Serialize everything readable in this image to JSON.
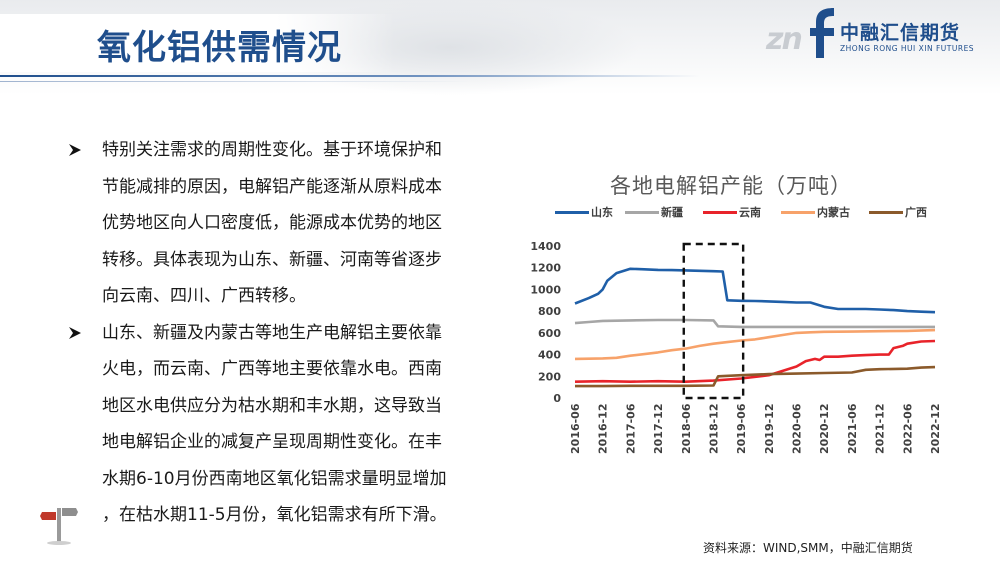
{
  "header": {
    "title": "氧化铝供需情况",
    "logo_cn": "中融汇信期货",
    "logo_en": "ZHONG RONG HUI XIN FUTURES",
    "logo_mark": "zn"
  },
  "bullets": [
    {
      "lines": [
        "特别关注需求的周期性变化。基于环境保护和",
        "节能减排的原因，电解铝产能逐渐从原料成本",
        "优势地区向人口密度低，能源成本优势的地区",
        "转移。具体表现为山东、新疆、河南等省逐步",
        "向云南、四川、广西转移。"
      ]
    },
    {
      "lines": [
        "山东、新疆及内蒙古等地生产电解铝主要依靠",
        "火电，而云南、广西等地主要依靠水电。西南",
        "地区水电供应分为枯水期和丰水期，这导致当",
        "地电解铝企业的减复产呈现周期性变化。在丰",
        "水期6-10月份西南地区氧化铝需求量明显增加",
        "，在枯水期11-5月份，氧化铝需求有所下滑。"
      ]
    }
  ],
  "source": "资料来源：WIND,SMM，中融汇信期货",
  "chart_data": {
    "type": "line",
    "title": "各地电解铝产能（万吨）",
    "ylim": [
      0,
      1400
    ],
    "yticks": [
      0,
      200,
      400,
      600,
      800,
      1000,
      1200,
      1400
    ],
    "xlabels": [
      "2016-06",
      "2016-12",
      "2017-06",
      "2017-12",
      "2018-06",
      "2018-12",
      "2019-06",
      "2019-12",
      "2020-06",
      "2020-12",
      "2021-06",
      "2021-12",
      "2022-06",
      "2022-12"
    ],
    "grid": false,
    "legend_position": "top",
    "highlight_box": {
      "from": "2018-06",
      "to": "2019-06"
    },
    "series": [
      {
        "name": "山东",
        "color": "#1f5fa8",
        "points": [
          [
            "2016-06",
            870
          ],
          [
            "2016-09",
            920
          ],
          [
            "2016-11",
            960
          ],
          [
            "2016-12",
            1000
          ],
          [
            "2017-01",
            1080
          ],
          [
            "2017-03",
            1150
          ],
          [
            "2017-06",
            1190
          ],
          [
            "2017-09",
            1185
          ],
          [
            "2017-12",
            1180
          ],
          [
            "2018-03",
            1178
          ],
          [
            "2018-06",
            1175
          ],
          [
            "2018-09",
            1172
          ],
          [
            "2018-12",
            1168
          ],
          [
            "2019-02",
            1165
          ],
          [
            "2019-03",
            900
          ],
          [
            "2019-06",
            895
          ],
          [
            "2019-09",
            893
          ],
          [
            "2019-12",
            890
          ],
          [
            "2020-03",
            885
          ],
          [
            "2020-06",
            880
          ],
          [
            "2020-09",
            880
          ],
          [
            "2020-12",
            840
          ],
          [
            "2021-03",
            820
          ],
          [
            "2021-06",
            820
          ],
          [
            "2021-09",
            820
          ],
          [
            "2021-12",
            815
          ],
          [
            "2022-03",
            810
          ],
          [
            "2022-06",
            800
          ],
          [
            "2022-09",
            795
          ],
          [
            "2022-12",
            790
          ]
        ]
      },
      {
        "name": "新疆",
        "color": "#a6a6a6",
        "points": [
          [
            "2016-06",
            690
          ],
          [
            "2016-09",
            700
          ],
          [
            "2016-12",
            710
          ],
          [
            "2017-06",
            715
          ],
          [
            "2017-12",
            718
          ],
          [
            "2018-06",
            718
          ],
          [
            "2018-12",
            715
          ],
          [
            "2019-01",
            660
          ],
          [
            "2019-06",
            655
          ],
          [
            "2019-12",
            655
          ],
          [
            "2020-06",
            655
          ],
          [
            "2020-12",
            655
          ],
          [
            "2021-06",
            655
          ],
          [
            "2021-12",
            655
          ],
          [
            "2022-06",
            655
          ],
          [
            "2022-12",
            655
          ]
        ]
      },
      {
        "name": "云南",
        "color": "#e8232a",
        "points": [
          [
            "2016-06",
            150
          ],
          [
            "2016-12",
            155
          ],
          [
            "2017-06",
            150
          ],
          [
            "2017-12",
            155
          ],
          [
            "2018-06",
            150
          ],
          [
            "2018-12",
            160
          ],
          [
            "2019-06",
            180
          ],
          [
            "2019-12",
            210
          ],
          [
            "2020-03",
            250
          ],
          [
            "2020-06",
            290
          ],
          [
            "2020-08",
            340
          ],
          [
            "2020-10",
            360
          ],
          [
            "2020-11",
            350
          ],
          [
            "2020-12",
            380
          ],
          [
            "2021-03",
            380
          ],
          [
            "2021-06",
            390
          ],
          [
            "2021-09",
            395
          ],
          [
            "2021-12",
            400
          ],
          [
            "2022-02",
            400
          ],
          [
            "2022-03",
            460
          ],
          [
            "2022-05",
            480
          ],
          [
            "2022-06",
            500
          ],
          [
            "2022-09",
            520
          ],
          [
            "2022-12",
            525
          ]
        ]
      },
      {
        "name": "内蒙古",
        "color": "#f7a26a",
        "points": [
          [
            "2016-06",
            360
          ],
          [
            "2016-12",
            365
          ],
          [
            "2017-03",
            370
          ],
          [
            "2017-06",
            390
          ],
          [
            "2017-12",
            420
          ],
          [
            "2018-03",
            440
          ],
          [
            "2018-06",
            455
          ],
          [
            "2018-09",
            480
          ],
          [
            "2018-12",
            500
          ],
          [
            "2019-03",
            515
          ],
          [
            "2019-06",
            530
          ],
          [
            "2019-09",
            540
          ],
          [
            "2019-12",
            560
          ],
          [
            "2020-03",
            580
          ],
          [
            "2020-06",
            600
          ],
          [
            "2020-09",
            605
          ],
          [
            "2020-12",
            610
          ],
          [
            "2021-06",
            612
          ],
          [
            "2021-12",
            615
          ],
          [
            "2022-06",
            618
          ],
          [
            "2022-12",
            625
          ]
        ]
      },
      {
        "name": "广西",
        "color": "#8b5a2b",
        "points": [
          [
            "2016-06",
            110
          ],
          [
            "2016-12",
            110
          ],
          [
            "2017-06",
            112
          ],
          [
            "2017-12",
            112
          ],
          [
            "2018-06",
            112
          ],
          [
            "2018-12",
            115
          ],
          [
            "2019-01",
            200
          ],
          [
            "2019-06",
            210
          ],
          [
            "2019-12",
            220
          ],
          [
            "2020-06",
            225
          ],
          [
            "2020-12",
            230
          ],
          [
            "2021-06",
            235
          ],
          [
            "2021-09",
            260
          ],
          [
            "2021-12",
            265
          ],
          [
            "2022-06",
            270
          ],
          [
            "2022-09",
            280
          ],
          [
            "2022-12",
            285
          ]
        ]
      }
    ]
  }
}
